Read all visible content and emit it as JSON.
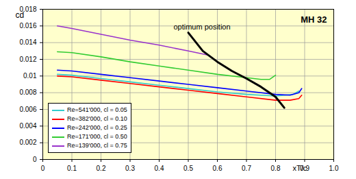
{
  "chart_data": {
    "type": "line",
    "title": "MH 32",
    "x_label": "xT/c",
    "y_label": "cd",
    "xlim": [
      0,
      1
    ],
    "ylim": [
      0,
      0.018
    ],
    "xticks": [
      0,
      0.1,
      0.2,
      0.3,
      0.4,
      0.5,
      0.6,
      0.7,
      0.8,
      0.9,
      {
        "value": 1,
        "label": "1.0"
      }
    ],
    "yticks": [
      0,
      0.002,
      0.004,
      0.006,
      0.008,
      0.01,
      0.012,
      0.014,
      0.016,
      0.018
    ],
    "grid": true,
    "legend": "bottom-left",
    "series": [
      {
        "name": "Re=541'000, cl = 0.05",
        "color": "#33cccc",
        "line_style": "solid",
        "x": [
          0.05,
          0.1,
          0.2,
          0.3,
          0.4,
          0.5,
          0.6,
          0.7,
          0.8,
          0.86,
          0.88
        ],
        "values": [
          0.0102,
          0.0101,
          0.0097,
          0.0093,
          0.0089,
          0.0085,
          0.0081,
          0.0078,
          0.0076,
          0.0078,
          0.0082
        ]
      },
      {
        "name": "Re=382'000, cl = 0.10",
        "color": "#ff0000",
        "line_style": "solid",
        "x": [
          0.05,
          0.1,
          0.2,
          0.3,
          0.4,
          0.5,
          0.6,
          0.7,
          0.8,
          0.85,
          0.88,
          0.89
        ],
        "values": [
          0.01,
          0.0099,
          0.0095,
          0.0091,
          0.0087,
          0.0083,
          0.0079,
          0.0075,
          0.0071,
          0.0071,
          0.0073,
          0.0077
        ]
      },
      {
        "name": "Re=242'000, cl = 0.25",
        "color": "#0000ff",
        "line_style": "solid",
        "x": [
          0.05,
          0.1,
          0.2,
          0.3,
          0.4,
          0.5,
          0.6,
          0.7,
          0.8,
          0.85,
          0.88,
          0.89
        ],
        "values": [
          0.0107,
          0.0106,
          0.0102,
          0.0098,
          0.0094,
          0.009,
          0.0086,
          0.0082,
          0.0078,
          0.0077,
          0.008,
          0.0085
        ]
      },
      {
        "name": "Re=171'000, cl = 0.50",
        "color": "#33cc33",
        "line_style": "solid",
        "x": [
          0.05,
          0.1,
          0.2,
          0.3,
          0.4,
          0.5,
          0.6,
          0.7,
          0.75,
          0.78,
          0.8
        ],
        "values": [
          0.0129,
          0.0128,
          0.0123,
          0.0117,
          0.0112,
          0.0107,
          0.0102,
          0.0098,
          0.0096,
          0.0096,
          0.0101
        ]
      },
      {
        "name": "Re=139'000, cl = 0.75",
        "color": "#9933cc",
        "line_style": "solid",
        "x": [
          0.05,
          0.1,
          0.2,
          0.3,
          0.4,
          0.5,
          0.57
        ],
        "values": [
          0.016,
          0.0157,
          0.015,
          0.0143,
          0.0137,
          0.013,
          0.0125
        ]
      }
    ],
    "annotations": [
      {
        "text": "optimum position",
        "color": "#000000",
        "x": [
          0.5,
          0.55,
          0.6,
          0.65,
          0.7,
          0.75,
          0.8,
          0.83
        ],
        "y": [
          0.0152,
          0.013,
          0.0117,
          0.0106,
          0.0097,
          0.0087,
          0.0075,
          0.0062
        ]
      }
    ]
  }
}
